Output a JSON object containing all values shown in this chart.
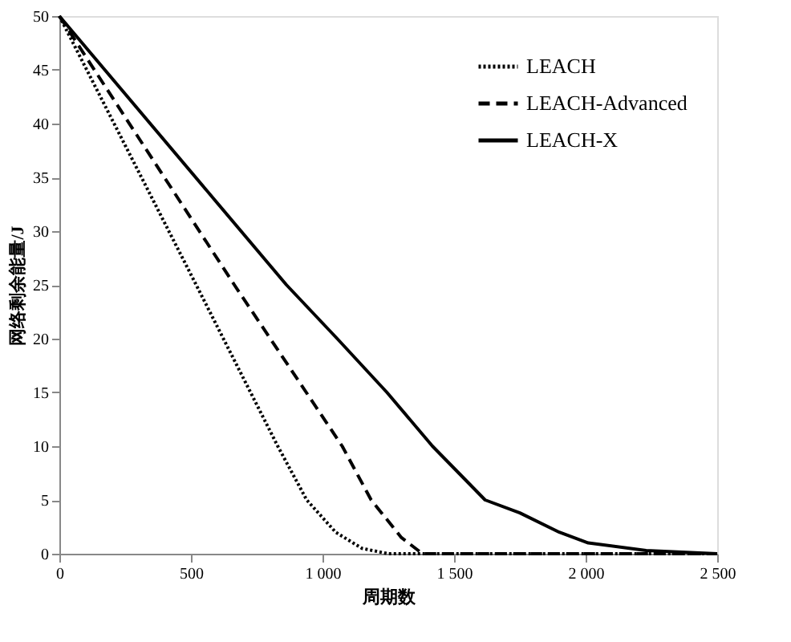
{
  "chart_data": {
    "type": "line",
    "xlabel": "周期数",
    "ylabel": "网络剩余能量/J",
    "xlim": [
      0,
      2500
    ],
    "ylim": [
      0,
      50
    ],
    "xticks": [
      0,
      500,
      {
        "value": 1000,
        "label": "1 000"
      },
      {
        "value": 1500,
        "label": "1 500"
      },
      {
        "value": 2000,
        "label": "2 000"
      },
      {
        "value": 2500,
        "label": "2 500"
      }
    ],
    "yticks": [
      0,
      5,
      10,
      15,
      20,
      25,
      30,
      35,
      40,
      45,
      50
    ],
    "grid": false,
    "legend": "top right",
    "marker": "none",
    "series": [
      {
        "name": "LEACH",
        "color": "#000000",
        "line_style": "dotted",
        "x": [
          0,
          520,
          830,
          940,
          1050,
          1150,
          1250,
          2500
        ],
        "values": [
          50,
          25,
          10,
          5,
          2,
          0.5,
          0,
          0
        ]
      },
      {
        "name": "LEACH-Advanced",
        "color": "#000000",
        "line_style": "dashed",
        "x": [
          0,
          665,
          1075,
          1185,
          1300,
          1380,
          2500
        ],
        "values": [
          50,
          25,
          10,
          5,
          1.5,
          0,
          0
        ]
      },
      {
        "name": "LEACH-X",
        "color": "#000000",
        "line_style": "solid",
        "x": [
          0,
          863,
          1056,
          1245,
          1418,
          1618,
          1750,
          1900,
          2010,
          2230,
          2500
        ],
        "values": [
          50,
          25,
          20,
          15,
          10,
          5,
          3.8,
          2,
          1,
          0.3,
          0
        ]
      }
    ]
  }
}
